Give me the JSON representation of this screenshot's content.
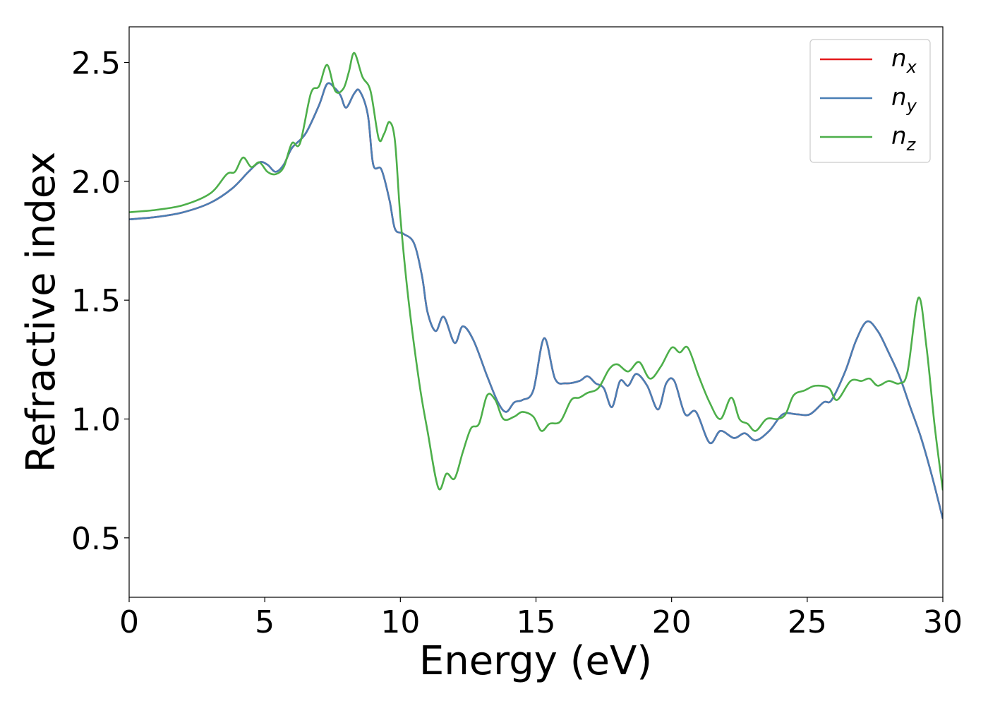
{
  "chart_data": {
    "type": "line",
    "title": "",
    "xlabel": "Energy (eV)",
    "ylabel": "Refractive index",
    "xlim": [
      0,
      30
    ],
    "ylim": [
      0.25,
      2.65
    ],
    "xticks": [
      0,
      5,
      10,
      15,
      20,
      25,
      30
    ],
    "xtick_labels": [
      "0",
      "5",
      "10",
      "15",
      "20",
      "25",
      "30"
    ],
    "yticks": [
      0.5,
      1.0,
      1.5,
      2.0,
      2.5
    ],
    "ytick_labels": [
      "0.5",
      "1.0",
      "1.5",
      "2.0",
      "2.5"
    ],
    "grid": false,
    "legend_position": "top-right",
    "series": [
      {
        "name": "n",
        "sub": "x",
        "color": "#e41a1c",
        "points": [
          [
            0,
            1.84
          ],
          [
            1,
            1.85
          ],
          [
            2,
            1.87
          ],
          [
            3,
            1.91
          ],
          [
            3.8,
            1.97
          ],
          [
            4.4,
            2.04
          ],
          [
            4.8,
            2.08
          ],
          [
            5.1,
            2.07
          ],
          [
            5.4,
            2.04
          ],
          [
            5.7,
            2.07
          ],
          [
            6.0,
            2.14
          ],
          [
            6.5,
            2.2
          ],
          [
            7.0,
            2.32
          ],
          [
            7.3,
            2.41
          ],
          [
            7.6,
            2.39
          ],
          [
            7.8,
            2.36
          ],
          [
            8.0,
            2.31
          ],
          [
            8.3,
            2.37
          ],
          [
            8.5,
            2.38
          ],
          [
            8.8,
            2.28
          ],
          [
            9.0,
            2.07
          ],
          [
            9.3,
            2.05
          ],
          [
            9.6,
            1.92
          ],
          [
            9.8,
            1.8
          ],
          [
            10.1,
            1.78
          ],
          [
            10.5,
            1.74
          ],
          [
            10.8,
            1.6
          ],
          [
            11.0,
            1.45
          ],
          [
            11.3,
            1.37
          ],
          [
            11.6,
            1.43
          ],
          [
            12.0,
            1.32
          ],
          [
            12.3,
            1.39
          ],
          [
            12.7,
            1.33
          ],
          [
            13.2,
            1.18
          ],
          [
            13.6,
            1.07
          ],
          [
            13.9,
            1.03
          ],
          [
            14.2,
            1.07
          ],
          [
            14.5,
            1.08
          ],
          [
            14.9,
            1.12
          ],
          [
            15.3,
            1.34
          ],
          [
            15.7,
            1.17
          ],
          [
            16.1,
            1.15
          ],
          [
            16.6,
            1.16
          ],
          [
            16.9,
            1.18
          ],
          [
            17.2,
            1.15
          ],
          [
            17.5,
            1.13
          ],
          [
            17.8,
            1.05
          ],
          [
            18.1,
            1.16
          ],
          [
            18.4,
            1.14
          ],
          [
            18.7,
            1.19
          ],
          [
            19.1,
            1.14
          ],
          [
            19.5,
            1.04
          ],
          [
            19.8,
            1.15
          ],
          [
            20.1,
            1.16
          ],
          [
            20.5,
            1.02
          ],
          [
            20.9,
            1.03
          ],
          [
            21.4,
            0.9
          ],
          [
            21.8,
            0.95
          ],
          [
            22.3,
            0.92
          ],
          [
            22.7,
            0.94
          ],
          [
            23.1,
            0.91
          ],
          [
            23.6,
            0.95
          ],
          [
            24.1,
            1.02
          ],
          [
            24.6,
            1.02
          ],
          [
            25.1,
            1.02
          ],
          [
            25.6,
            1.07
          ],
          [
            25.9,
            1.08
          ],
          [
            26.4,
            1.2
          ],
          [
            26.8,
            1.33
          ],
          [
            27.2,
            1.41
          ],
          [
            27.6,
            1.37
          ],
          [
            28.0,
            1.28
          ],
          [
            28.4,
            1.18
          ],
          [
            28.8,
            1.05
          ],
          [
            29.2,
            0.92
          ],
          [
            29.6,
            0.76
          ],
          [
            30.0,
            0.58
          ]
        ]
      },
      {
        "name": "n",
        "sub": "y",
        "color": "#4a7fb5",
        "points": [
          [
            0,
            1.84
          ],
          [
            1,
            1.85
          ],
          [
            2,
            1.87
          ],
          [
            3,
            1.91
          ],
          [
            3.8,
            1.97
          ],
          [
            4.4,
            2.04
          ],
          [
            4.8,
            2.08
          ],
          [
            5.1,
            2.07
          ],
          [
            5.4,
            2.04
          ],
          [
            5.7,
            2.07
          ],
          [
            6.0,
            2.14
          ],
          [
            6.5,
            2.2
          ],
          [
            7.0,
            2.32
          ],
          [
            7.3,
            2.41
          ],
          [
            7.6,
            2.39
          ],
          [
            7.8,
            2.36
          ],
          [
            8.0,
            2.31
          ],
          [
            8.3,
            2.37
          ],
          [
            8.5,
            2.38
          ],
          [
            8.8,
            2.28
          ],
          [
            9.0,
            2.07
          ],
          [
            9.3,
            2.05
          ],
          [
            9.6,
            1.92
          ],
          [
            9.8,
            1.8
          ],
          [
            10.1,
            1.78
          ],
          [
            10.5,
            1.74
          ],
          [
            10.8,
            1.6
          ],
          [
            11.0,
            1.45
          ],
          [
            11.3,
            1.37
          ],
          [
            11.6,
            1.43
          ],
          [
            12.0,
            1.32
          ],
          [
            12.3,
            1.39
          ],
          [
            12.7,
            1.33
          ],
          [
            13.2,
            1.18
          ],
          [
            13.6,
            1.07
          ],
          [
            13.9,
            1.03
          ],
          [
            14.2,
            1.07
          ],
          [
            14.5,
            1.08
          ],
          [
            14.9,
            1.12
          ],
          [
            15.3,
            1.34
          ],
          [
            15.7,
            1.17
          ],
          [
            16.1,
            1.15
          ],
          [
            16.6,
            1.16
          ],
          [
            16.9,
            1.18
          ],
          [
            17.2,
            1.15
          ],
          [
            17.5,
            1.13
          ],
          [
            17.8,
            1.05
          ],
          [
            18.1,
            1.16
          ],
          [
            18.4,
            1.14
          ],
          [
            18.7,
            1.19
          ],
          [
            19.1,
            1.14
          ],
          [
            19.5,
            1.04
          ],
          [
            19.8,
            1.15
          ],
          [
            20.1,
            1.16
          ],
          [
            20.5,
            1.02
          ],
          [
            20.9,
            1.03
          ],
          [
            21.4,
            0.9
          ],
          [
            21.8,
            0.95
          ],
          [
            22.3,
            0.92
          ],
          [
            22.7,
            0.94
          ],
          [
            23.1,
            0.91
          ],
          [
            23.6,
            0.95
          ],
          [
            24.1,
            1.02
          ],
          [
            24.6,
            1.02
          ],
          [
            25.1,
            1.02
          ],
          [
            25.6,
            1.07
          ],
          [
            25.9,
            1.08
          ],
          [
            26.4,
            1.2
          ],
          [
            26.8,
            1.33
          ],
          [
            27.2,
            1.41
          ],
          [
            27.6,
            1.37
          ],
          [
            28.0,
            1.28
          ],
          [
            28.4,
            1.18
          ],
          [
            28.8,
            1.05
          ],
          [
            29.2,
            0.92
          ],
          [
            29.6,
            0.76
          ],
          [
            30.0,
            0.58
          ]
        ]
      },
      {
        "name": "n",
        "sub": "z",
        "color": "#4daf4a",
        "points": [
          [
            0,
            1.87
          ],
          [
            1,
            1.88
          ],
          [
            2,
            1.9
          ],
          [
            3,
            1.95
          ],
          [
            3.6,
            2.03
          ],
          [
            3.9,
            2.04
          ],
          [
            4.2,
            2.1
          ],
          [
            4.5,
            2.06
          ],
          [
            4.8,
            2.08
          ],
          [
            5.1,
            2.04
          ],
          [
            5.4,
            2.03
          ],
          [
            5.7,
            2.06
          ],
          [
            6.0,
            2.16
          ],
          [
            6.3,
            2.16
          ],
          [
            6.7,
            2.37
          ],
          [
            7.0,
            2.4
          ],
          [
            7.3,
            2.49
          ],
          [
            7.6,
            2.38
          ],
          [
            7.9,
            2.39
          ],
          [
            8.1,
            2.46
          ],
          [
            8.3,
            2.54
          ],
          [
            8.6,
            2.44
          ],
          [
            8.9,
            2.38
          ],
          [
            9.2,
            2.18
          ],
          [
            9.4,
            2.2
          ],
          [
            9.6,
            2.25
          ],
          [
            9.8,
            2.17
          ],
          [
            10.0,
            1.85
          ],
          [
            10.3,
            1.5
          ],
          [
            10.7,
            1.15
          ],
          [
            11.0,
            0.95
          ],
          [
            11.4,
            0.71
          ],
          [
            11.7,
            0.77
          ],
          [
            12.0,
            0.75
          ],
          [
            12.3,
            0.86
          ],
          [
            12.6,
            0.96
          ],
          [
            12.9,
            0.98
          ],
          [
            13.2,
            1.1
          ],
          [
            13.5,
            1.08
          ],
          [
            13.8,
            1.0
          ],
          [
            14.2,
            1.01
          ],
          [
            14.5,
            1.03
          ],
          [
            14.9,
            1.01
          ],
          [
            15.2,
            0.95
          ],
          [
            15.5,
            0.98
          ],
          [
            15.9,
            0.99
          ],
          [
            16.3,
            1.08
          ],
          [
            16.6,
            1.09
          ],
          [
            16.9,
            1.11
          ],
          [
            17.3,
            1.13
          ],
          [
            17.7,
            1.21
          ],
          [
            18.0,
            1.23
          ],
          [
            18.4,
            1.2
          ],
          [
            18.8,
            1.24
          ],
          [
            19.2,
            1.17
          ],
          [
            19.6,
            1.22
          ],
          [
            20.0,
            1.3
          ],
          [
            20.3,
            1.28
          ],
          [
            20.6,
            1.3
          ],
          [
            21.0,
            1.18
          ],
          [
            21.4,
            1.07
          ],
          [
            21.8,
            1.0
          ],
          [
            22.2,
            1.09
          ],
          [
            22.5,
            1.0
          ],
          [
            22.8,
            0.98
          ],
          [
            23.1,
            0.95
          ],
          [
            23.5,
            1.0
          ],
          [
            23.9,
            1.0
          ],
          [
            24.2,
            1.02
          ],
          [
            24.5,
            1.1
          ],
          [
            24.9,
            1.12
          ],
          [
            25.3,
            1.14
          ],
          [
            25.8,
            1.13
          ],
          [
            26.1,
            1.08
          ],
          [
            26.6,
            1.16
          ],
          [
            27.0,
            1.16
          ],
          [
            27.3,
            1.17
          ],
          [
            27.6,
            1.14
          ],
          [
            28.0,
            1.16
          ],
          [
            28.4,
            1.15
          ],
          [
            28.7,
            1.2
          ],
          [
            29.1,
            1.51
          ],
          [
            29.4,
            1.3
          ],
          [
            29.7,
            0.97
          ],
          [
            30.0,
            0.7
          ]
        ]
      }
    ]
  }
}
